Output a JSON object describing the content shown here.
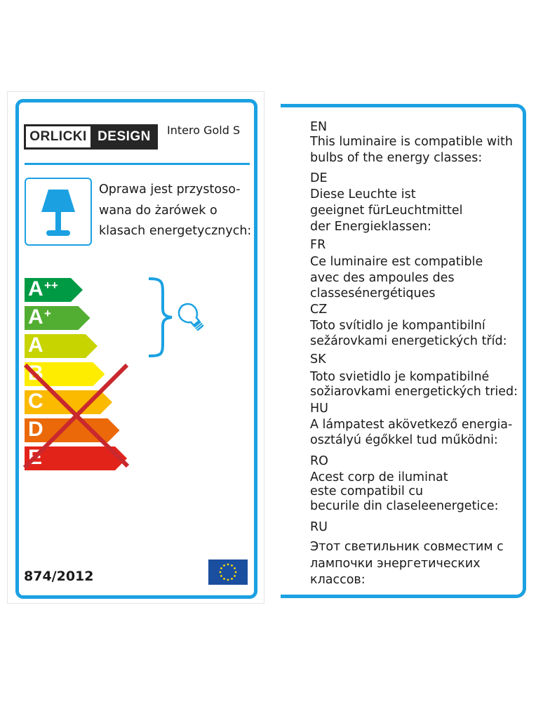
{
  "brand": {
    "logo_left": "ORLICKI",
    "logo_right": "DESIGN"
  },
  "model": "Intero Gold S",
  "polish_text": [
    "Oprawa jest przystoso-",
    "wana do żarówek o",
    "klasach energetycznych:"
  ],
  "energy_classes": [
    {
      "label": "A",
      "sup": "++",
      "color": "#009a44",
      "compatible": true
    },
    {
      "label": "A",
      "sup": "+",
      "color": "#52ae32",
      "compatible": true
    },
    {
      "label": "A",
      "sup": "",
      "color": "#c8d400",
      "compatible": true
    },
    {
      "label": "B",
      "sup": "",
      "color": "#ffed00",
      "compatible": false
    },
    {
      "label": "C",
      "sup": "",
      "color": "#fbba00",
      "compatible": false
    },
    {
      "label": "D",
      "sup": "",
      "color": "#eb6909",
      "compatible": false
    },
    {
      "label": "E",
      "sup": "",
      "color": "#e2231a",
      "compatible": false
    }
  ],
  "regulation": "874/2012",
  "icons": {
    "lamp": "table-lamp-icon",
    "bulb": "light-bulb-icon",
    "flag": "eu-flag-icon",
    "cross": "cross-out-mark"
  },
  "colors": {
    "accent": "#1ba1e2",
    "cross": "#c9282d"
  },
  "languages": [
    {
      "code": "EN",
      "lines": [
        "This luminaire is compatible with",
        "bulbs of the energy classes:"
      ]
    },
    {
      "code": "DE",
      "lines": [
        "Diese Leuchte ist",
        "geeignet fürLeuchtmittel",
        "der Energieklassen:"
      ]
    },
    {
      "code": "FR",
      "lines": [
        "Ce luminaire est compatible",
        "avec des ampoules des",
        "classesénergétiques"
      ]
    },
    {
      "code": "CZ",
      "lines": [
        "Toto svítidlo je kompantibilní",
        "sežárovkami energetických tříd:"
      ]
    },
    {
      "code": "SK",
      "lines": [
        "Toto svietidlo je kompatibilné",
        "sožiarovkami energetických tried:"
      ]
    },
    {
      "code": "HU",
      "lines": [
        "A lámpatest akövetkező energia-",
        "osztályú égőkkel tud működni:"
      ]
    },
    {
      "code": "RO",
      "lines": [
        "Acest corp de iluminat",
        "este compatibil cu",
        "becurile din claseleenergetice:"
      ]
    },
    {
      "code": "RU",
      "lines": [
        "Этот светильник совместим с",
        "лампочки энергетических",
        "классов:"
      ]
    }
  ]
}
